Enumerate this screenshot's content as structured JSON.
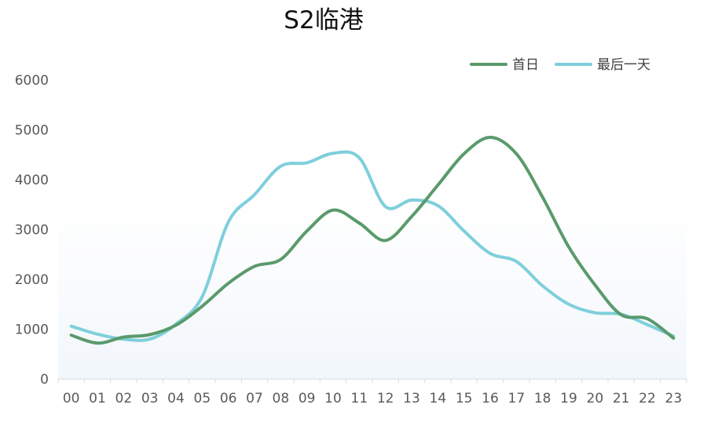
{
  "chart_data": {
    "type": "line",
    "title": "S2临港",
    "xlabel": "",
    "ylabel": "",
    "categories": [
      "00",
      "01",
      "02",
      "03",
      "04",
      "05",
      "06",
      "07",
      "08",
      "09",
      "10",
      "11",
      "12",
      "13",
      "14",
      "15",
      "16",
      "17",
      "18",
      "19",
      "20",
      "21",
      "22",
      "23"
    ],
    "ylim": [
      0,
      6000
    ],
    "yticks": [
      "0",
      "1000",
      "2000",
      "3000",
      "4000",
      "5000",
      "6000"
    ],
    "legend_position": "top-right",
    "grid": false,
    "smooth": true,
    "series": [
      {
        "name": "首日",
        "color": "#5a9a6b",
        "values": [
          880,
          720,
          840,
          890,
          1080,
          1460,
          1920,
          2260,
          2400,
          2970,
          3390,
          3130,
          2780,
          3260,
          3890,
          4520,
          4850,
          4520,
          3650,
          2650,
          1890,
          1290,
          1210,
          820
        ]
      },
      {
        "name": "最后一天",
        "color": "#7ecfdb",
        "values": [
          1060,
          900,
          800,
          800,
          1100,
          1650,
          3150,
          3700,
          4270,
          4340,
          4530,
          4440,
          3460,
          3590,
          3480,
          2970,
          2520,
          2360,
          1870,
          1500,
          1330,
          1300,
          1090,
          860
        ]
      }
    ]
  }
}
